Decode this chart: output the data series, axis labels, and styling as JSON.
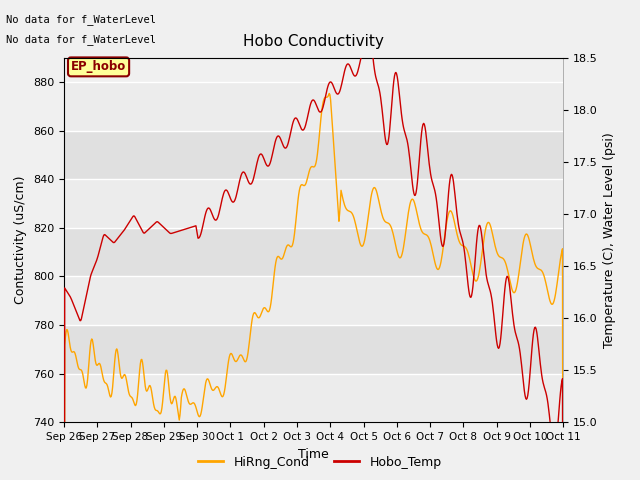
{
  "title": "Hobo Conductivity",
  "xlabel": "Time",
  "ylabel_left": "Contuctivity (uS/cm)",
  "ylabel_right": "Temperature (C), Water Level (psi)",
  "ylim_left": [
    740,
    890
  ],
  "ylim_right": [
    15.0,
    18.5
  ],
  "yticks_left": [
    740,
    760,
    780,
    800,
    820,
    840,
    860,
    880
  ],
  "yticks_right": [
    15.0,
    15.5,
    16.0,
    16.5,
    17.0,
    17.5,
    18.0,
    18.5
  ],
  "plot_bg_color": "#f0f0f0",
  "grid_color_light": "#e8e8e8",
  "grid_color_dark": "#d8d8d8",
  "fig_bg_color": "#f0f0f0",
  "cond_color": "#FFA500",
  "temp_color": "#CC0000",
  "no_data_text1": "No data for f_WaterLevel",
  "no_data_text2": "No data for f_WaterLevel",
  "ep_hobo_box_color": "#FFFF99",
  "ep_hobo_text_color": "#8B0000",
  "ep_hobo_border_color": "#8B0000",
  "legend_cond_label": "HiRng_Cond",
  "legend_temp_label": "Hobo_Temp",
  "xtick_labels": [
    "Sep 26",
    "Sep 27",
    "Sep 28",
    "Sep 29",
    "Sep 30",
    "Oct 1",
    "Oct 2",
    "Oct 3",
    "Oct 4",
    "Oct 5",
    "Oct 6",
    "Oct 7",
    "Oct 8",
    "Oct 9",
    "Oct 10",
    "Oct 11"
  ],
  "xtick_positions": [
    0,
    1,
    2,
    3,
    4,
    5,
    6,
    7,
    8,
    9,
    10,
    11,
    12,
    13,
    14,
    15
  ]
}
